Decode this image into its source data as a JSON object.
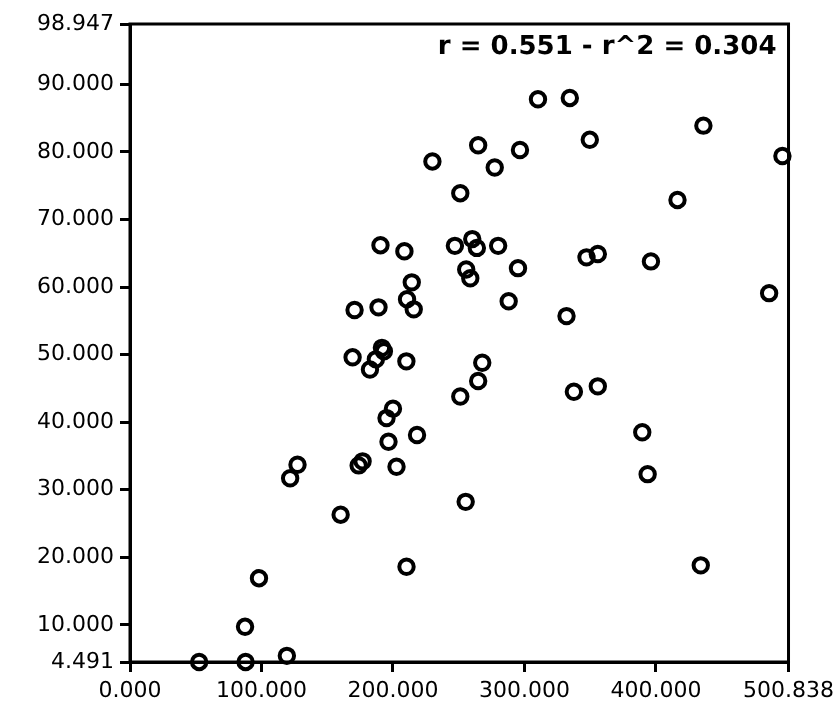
{
  "chart_data": {
    "type": "scatter",
    "annotations": [
      "r = 0.551 - r^2 = 0.304"
    ],
    "x": [
      52.6,
      87.9,
      119.3,
      87.5,
      98.1,
      210.3,
      160.2,
      121.8,
      127.4,
      173.9,
      176.9,
      202.7,
      196.6,
      195.1,
      200,
      218.3,
      169.3,
      182.5,
      187,
      191.6,
      193.1,
      210.2,
      190.5,
      208.7,
      214.3,
      210.7,
      189,
      170.8,
      215.8,
      310.3,
      334.5,
      436.1,
      264.8,
      296.6,
      349.7,
      230,
      277.4,
      496.2,
      251.2,
      416.4,
      247.1,
      260.3,
      263.8,
      280,
      295.1,
      255.7,
      258.8,
      347.2,
      355.8,
      396.2,
      288,
      486.1,
      332,
      267.9,
      264.8,
      251.2,
      337.6,
      355.8,
      389.6,
      393.7,
      255.3,
      434.1
    ],
    "series": [
      {
        "color": "#000000",
        "values": [
          4.5,
          4.5,
          5.4,
          9.7,
          16.9,
          18.6,
          26.3,
          31.7,
          33.7,
          33.6,
          34.2,
          33.4,
          37.1,
          40.6,
          42.0,
          38.1,
          49.6,
          47.8,
          49.3,
          51.0,
          50.5,
          49.0,
          66.2,
          65.3,
          60.7,
          58.2,
          57.0,
          56.6,
          56.7,
          87.8,
          88.0,
          83.9,
          81.0,
          80.3,
          81.8,
          78.6,
          77.7,
          79.4,
          73.9,
          72.9,
          66.1,
          67.1,
          65.8,
          66.1,
          62.8,
          62.6,
          61.3,
          64.4,
          64.9,
          63.8,
          57.9,
          59.1,
          55.7,
          48.8,
          46.1,
          43.8,
          44.5,
          45.3,
          38.5,
          32.3,
          28.2,
          18.8
        ]
      }
    ],
    "xlim": [
      0,
      500.838
    ],
    "ylim": [
      4.491,
      98.947
    ],
    "xticks": [
      {
        "value": 0,
        "label": "0.000"
      },
      {
        "value": 100,
        "label": "100.000"
      },
      {
        "value": 200,
        "label": "200.000"
      },
      {
        "value": 300,
        "label": "300.000"
      },
      {
        "value": 400,
        "label": "400.000"
      },
      500.838
    ],
    "yticks": [
      4.491,
      {
        "value": 10,
        "label": "10.000"
      },
      {
        "value": 20,
        "label": "20.000"
      },
      {
        "value": 30,
        "label": "30.000"
      },
      {
        "value": 40,
        "label": "40.000"
      },
      {
        "value": 50,
        "label": "50.000"
      },
      {
        "value": 60,
        "label": "60.000"
      },
      {
        "value": 70,
        "label": "70.000"
      },
      {
        "value": 80,
        "label": "80.000"
      },
      {
        "value": 90,
        "label": "90.000"
      },
      98.947
    ],
    "grid": false,
    "legend": false,
    "marker": "circle"
  }
}
